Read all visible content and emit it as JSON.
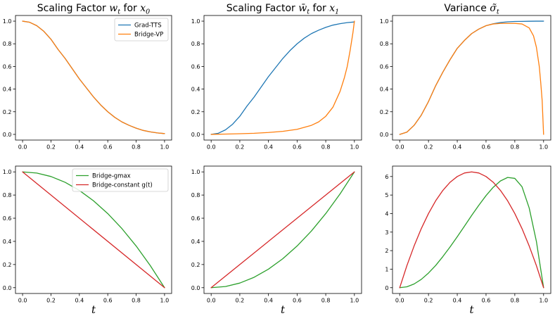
{
  "colors": {
    "blue": "#1f77b4",
    "orange": "#ff7f0e",
    "green": "#2ca02c",
    "red": "#d62728"
  },
  "chart_data": [
    {
      "type": "line",
      "title": "Scaling Factor w_t for x_0",
      "xlabel": "",
      "ylabel": "",
      "xlim": [
        0,
        1
      ],
      "ylim": [
        0,
        1
      ],
      "xticks": [
        "0.0",
        "0.2",
        "0.4",
        "0.6",
        "0.8",
        "1.0"
      ],
      "yticks": [
        "0.0",
        "0.2",
        "0.4",
        "0.6",
        "0.8",
        "1.0"
      ],
      "legend": "top-right",
      "series": [
        {
          "name": "Grad-TTS",
          "color": "#1f77b4",
          "x": [
            0,
            0.05,
            0.1,
            0.15,
            0.2,
            0.25,
            0.3,
            0.35,
            0.4,
            0.45,
            0.5,
            0.55,
            0.6,
            0.65,
            0.7,
            0.75,
            0.8,
            0.85,
            0.9,
            0.95,
            1.0
          ],
          "y": [
            1.0,
            0.99,
            0.96,
            0.91,
            0.84,
            0.75,
            0.67,
            0.58,
            0.49,
            0.41,
            0.33,
            0.26,
            0.2,
            0.15,
            0.11,
            0.08,
            0.055,
            0.035,
            0.022,
            0.013,
            0.007
          ]
        },
        {
          "name": "Bridge-VP",
          "color": "#ff7f0e",
          "x": [
            0,
            0.05,
            0.1,
            0.15,
            0.2,
            0.25,
            0.3,
            0.35,
            0.4,
            0.45,
            0.5,
            0.55,
            0.6,
            0.65,
            0.7,
            0.75,
            0.8,
            0.85,
            0.9,
            0.95,
            1.0
          ],
          "y": [
            1.0,
            0.99,
            0.96,
            0.91,
            0.84,
            0.75,
            0.67,
            0.58,
            0.49,
            0.41,
            0.33,
            0.26,
            0.2,
            0.15,
            0.11,
            0.08,
            0.055,
            0.035,
            0.022,
            0.013,
            0.007
          ]
        }
      ]
    },
    {
      "type": "line",
      "title": "Scaling Factor w̄_t for x_1",
      "xlabel": "",
      "ylabel": "",
      "xlim": [
        0,
        1
      ],
      "ylim": [
        0,
        1
      ],
      "xticks": [
        "0.0",
        "0.2",
        "0.4",
        "0.6",
        "0.8",
        "1.0"
      ],
      "yticks": [
        "0.0",
        "0.2",
        "0.4",
        "0.6",
        "0.8",
        "1.0"
      ],
      "series": [
        {
          "name": "Grad-TTS",
          "color": "#1f77b4",
          "x": [
            0,
            0.05,
            0.1,
            0.15,
            0.2,
            0.25,
            0.3,
            0.35,
            0.4,
            0.45,
            0.5,
            0.55,
            0.6,
            0.65,
            0.7,
            0.75,
            0.8,
            0.85,
            0.9,
            0.95,
            1.0
          ],
          "y": [
            0.0,
            0.01,
            0.04,
            0.09,
            0.16,
            0.25,
            0.33,
            0.42,
            0.51,
            0.59,
            0.67,
            0.74,
            0.8,
            0.85,
            0.89,
            0.92,
            0.945,
            0.965,
            0.978,
            0.987,
            0.993
          ]
        },
        {
          "name": "Bridge-VP",
          "color": "#ff7f0e",
          "x": [
            0,
            0.1,
            0.2,
            0.3,
            0.4,
            0.5,
            0.6,
            0.7,
            0.75,
            0.8,
            0.85,
            0.9,
            0.93,
            0.95,
            0.97,
            0.98,
            0.99,
            1.0
          ],
          "y": [
            0.0,
            0.003,
            0.006,
            0.01,
            0.017,
            0.027,
            0.045,
            0.08,
            0.11,
            0.16,
            0.24,
            0.38,
            0.5,
            0.6,
            0.74,
            0.82,
            0.9,
            1.0
          ]
        }
      ]
    },
    {
      "type": "line",
      "title": "Variance σ̃_t",
      "xlabel": "",
      "ylabel": "",
      "xlim": [
        0,
        1
      ],
      "ylim": [
        0,
        1
      ],
      "xticks": [
        "0.0",
        "0.2",
        "0.4",
        "0.6",
        "0.8",
        "1.0"
      ],
      "yticks": [
        "0.0",
        "0.2",
        "0.4",
        "0.6",
        "0.8",
        "1.0"
      ],
      "series": [
        {
          "name": "Grad-TTS",
          "color": "#1f77b4",
          "x": [
            0,
            0.05,
            0.1,
            0.15,
            0.2,
            0.25,
            0.3,
            0.35,
            0.4,
            0.45,
            0.5,
            0.55,
            0.6,
            0.65,
            0.7,
            0.75,
            0.8,
            0.85,
            0.9,
            0.95,
            1.0
          ],
          "y": [
            0.0,
            0.02,
            0.08,
            0.17,
            0.29,
            0.43,
            0.55,
            0.66,
            0.76,
            0.83,
            0.89,
            0.93,
            0.96,
            0.977,
            0.988,
            0.994,
            0.997,
            0.998,
            0.999,
            1.0,
            1.0
          ]
        },
        {
          "name": "Bridge-VP",
          "color": "#ff7f0e",
          "x": [
            0,
            0.05,
            0.1,
            0.15,
            0.2,
            0.25,
            0.3,
            0.35,
            0.4,
            0.45,
            0.5,
            0.55,
            0.6,
            0.65,
            0.7,
            0.75,
            0.8,
            0.85,
            0.9,
            0.93,
            0.95,
            0.97,
            0.98,
            0.99,
            1.0
          ],
          "y": [
            0.0,
            0.02,
            0.08,
            0.17,
            0.29,
            0.43,
            0.55,
            0.66,
            0.76,
            0.83,
            0.89,
            0.93,
            0.96,
            0.975,
            0.98,
            0.98,
            0.98,
            0.975,
            0.94,
            0.87,
            0.77,
            0.6,
            0.46,
            0.3,
            0.0
          ]
        }
      ]
    },
    {
      "type": "line",
      "title": "",
      "xlabel": "t",
      "ylabel": "",
      "xlim": [
        0,
        1
      ],
      "ylim": [
        0,
        1
      ],
      "xticks": [
        "0.0",
        "0.2",
        "0.4",
        "0.6",
        "0.8",
        "1.0"
      ],
      "yticks": [
        "0.0",
        "0.2",
        "0.4",
        "0.6",
        "0.8",
        "1.0"
      ],
      "legend": "top-right",
      "series": [
        {
          "name": "Bridge-gmax",
          "color": "#2ca02c",
          "x": [
            0,
            0.1,
            0.2,
            0.3,
            0.4,
            0.5,
            0.6,
            0.7,
            0.8,
            0.9,
            1.0
          ],
          "y": [
            1.0,
            0.99,
            0.96,
            0.91,
            0.84,
            0.75,
            0.64,
            0.51,
            0.36,
            0.19,
            0.0
          ]
        },
        {
          "name": "Bridge-constant g(t)",
          "color": "#d62728",
          "x": [
            0,
            1.0
          ],
          "y": [
            1.0,
            0.0
          ]
        }
      ]
    },
    {
      "type": "line",
      "title": "",
      "xlabel": "t",
      "ylabel": "",
      "xlim": [
        0,
        1
      ],
      "ylim": [
        0,
        1
      ],
      "xticks": [
        "0.0",
        "0.2",
        "0.4",
        "0.6",
        "0.8",
        "1.0"
      ],
      "yticks": [
        "0.0",
        "0.2",
        "0.4",
        "0.6",
        "0.8",
        "1.0"
      ],
      "series": [
        {
          "name": "Bridge-gmax",
          "color": "#2ca02c",
          "x": [
            0,
            0.1,
            0.2,
            0.3,
            0.4,
            0.5,
            0.6,
            0.7,
            0.8,
            0.9,
            1.0
          ],
          "y": [
            0.0,
            0.01,
            0.04,
            0.09,
            0.16,
            0.25,
            0.36,
            0.49,
            0.64,
            0.81,
            1.0
          ]
        },
        {
          "name": "Bridge-constant g(t)",
          "color": "#d62728",
          "x": [
            0,
            1.0
          ],
          "y": [
            0.0,
            1.0
          ]
        }
      ]
    },
    {
      "type": "line",
      "title": "",
      "xlabel": "t",
      "ylabel": "",
      "xlim": [
        0,
        1
      ],
      "ylim": [
        0,
        6.25
      ],
      "xticks": [
        "0.0",
        "0.2",
        "0.4",
        "0.6",
        "0.8",
        "1.0"
      ],
      "yticks": [
        "0",
        "1",
        "2",
        "3",
        "4",
        "5",
        "6"
      ],
      "ytick_values": [
        0,
        1,
        2,
        3,
        4,
        5,
        6
      ],
      "series": [
        {
          "name": "Bridge-gmax",
          "color": "#2ca02c",
          "x": [
            0,
            0.05,
            0.1,
            0.15,
            0.2,
            0.25,
            0.3,
            0.35,
            0.4,
            0.45,
            0.5,
            0.55,
            0.6,
            0.65,
            0.7,
            0.75,
            0.8,
            0.85,
            0.9,
            0.95,
            1.0
          ],
          "y": [
            0.0,
            0.05,
            0.2,
            0.45,
            0.79,
            1.2,
            1.68,
            2.2,
            2.75,
            3.32,
            3.9,
            4.45,
            4.97,
            5.42,
            5.76,
            5.95,
            5.9,
            5.45,
            4.3,
            2.5,
            0.0
          ]
        },
        {
          "name": "Bridge-constant g(t)",
          "color": "#d62728",
          "x": [
            0,
            0.05,
            0.1,
            0.15,
            0.2,
            0.25,
            0.3,
            0.35,
            0.4,
            0.45,
            0.5,
            0.55,
            0.6,
            0.65,
            0.7,
            0.75,
            0.8,
            0.85,
            0.9,
            0.95,
            1.0
          ],
          "y": [
            0.0,
            1.19,
            2.25,
            3.19,
            4.0,
            4.69,
            5.25,
            5.69,
            6.0,
            6.19,
            6.25,
            6.19,
            6.0,
            5.69,
            5.25,
            4.69,
            4.0,
            3.19,
            2.25,
            1.19,
            0.0
          ]
        }
      ]
    }
  ]
}
